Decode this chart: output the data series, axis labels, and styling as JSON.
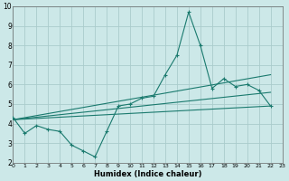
{
  "xlabel": "Humidex (Indice chaleur)",
  "xlim": [
    0,
    23
  ],
  "ylim": [
    2,
    10
  ],
  "xticks": [
    0,
    1,
    2,
    3,
    4,
    5,
    6,
    7,
    8,
    9,
    10,
    11,
    12,
    13,
    14,
    15,
    16,
    17,
    18,
    19,
    20,
    21,
    22,
    23
  ],
  "yticks": [
    2,
    3,
    4,
    5,
    6,
    7,
    8,
    9,
    10
  ],
  "background_color": "#cce8e8",
  "grid_color": "#aacccc",
  "line_color": "#1a7a6e",
  "series1_x": [
    0,
    1,
    2,
    3,
    4,
    5,
    6,
    7,
    8,
    9,
    10,
    11,
    12,
    13,
    14,
    15,
    16,
    17,
    18,
    19,
    20,
    21,
    22
  ],
  "series1_y": [
    4.3,
    3.5,
    3.9,
    3.7,
    3.6,
    2.9,
    2.6,
    2.3,
    3.6,
    4.9,
    5.0,
    5.3,
    5.4,
    6.5,
    7.5,
    9.7,
    8.0,
    5.8,
    6.3,
    5.9,
    6.0,
    5.7,
    4.9
  ],
  "series2_x": [
    0,
    22
  ],
  "series2_y": [
    4.2,
    4.9
  ],
  "series3_x": [
    0,
    22
  ],
  "series3_y": [
    4.2,
    5.6
  ],
  "series4_x": [
    0,
    22
  ],
  "series4_y": [
    4.2,
    6.5
  ]
}
